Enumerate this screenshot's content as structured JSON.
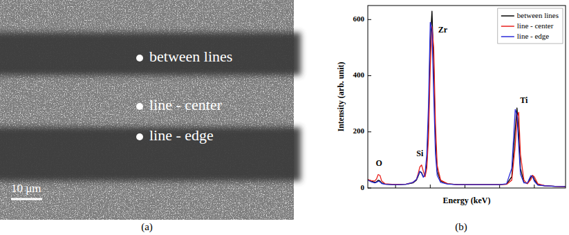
{
  "image_panel": {
    "caption": "(a)",
    "labels": [
      "between lines",
      "line - center",
      "line - edge"
    ],
    "scale_bar": "10 μm"
  },
  "chart_data": {
    "type": "line",
    "caption": "(b)",
    "x_label": "Energy (keV)",
    "y_label": "Intensity (arb. unit)",
    "x": [
      0.2,
      0.3,
      0.4,
      0.45,
      0.5,
      0.55,
      0.6,
      0.7,
      0.9,
      1.1,
      1.3,
      1.5,
      1.6,
      1.65,
      1.7,
      1.75,
      1.8,
      1.85,
      1.9,
      1.95,
      2.0,
      2.05,
      2.1,
      2.15,
      2.2,
      2.3,
      2.5,
      2.8,
      3.1,
      3.4,
      3.7,
      4.0,
      4.2,
      4.35,
      4.45,
      4.5,
      4.55,
      4.6,
      4.7,
      4.8,
      4.9,
      4.95,
      5.0,
      5.1,
      5.3,
      5.6,
      5.9
    ],
    "series": [
      {
        "name": "between lines",
        "color": "#000000",
        "values": [
          30,
          25,
          20,
          22,
          28,
          25,
          18,
          14,
          12,
          12,
          13,
          18,
          28,
          42,
          58,
          55,
          40,
          45,
          90,
          230,
          520,
          630,
          430,
          170,
          60,
          25,
          15,
          12,
          12,
          12,
          12,
          12,
          14,
          40,
          210,
          285,
          200,
          70,
          20,
          16,
          38,
          45,
          30,
          12,
          8,
          6,
          5
        ]
      },
      {
        "name": "line - center",
        "color": "#e8211d",
        "values": [
          30,
          26,
          25,
          32,
          48,
          45,
          25,
          15,
          13,
          13,
          14,
          20,
          30,
          50,
          75,
          82,
          60,
          40,
          70,
          180,
          430,
          575,
          500,
          230,
          80,
          28,
          15,
          12,
          12,
          12,
          12,
          12,
          13,
          28,
          150,
          250,
          270,
          120,
          28,
          15,
          30,
          45,
          40,
          15,
          8,
          6,
          5
        ]
      },
      {
        "name": "line - edge",
        "color": "#2b2bd9",
        "values": [
          28,
          22,
          18,
          20,
          24,
          22,
          16,
          13,
          12,
          12,
          13,
          20,
          30,
          45,
          60,
          52,
          38,
          50,
          120,
          300,
          590,
          560,
          330,
          120,
          45,
          20,
          14,
          12,
          12,
          12,
          12,
          12,
          15,
          70,
          280,
          260,
          150,
          50,
          18,
          18,
          44,
          40,
          24,
          10,
          8,
          6,
          5
        ]
      }
    ],
    "annotations": [
      {
        "text": "O",
        "x": 0.52,
        "y": 85
      },
      {
        "text": "Si",
        "x": 1.7,
        "y": 120
      },
      {
        "text": "Zr",
        "x": 2.36,
        "y": 560
      },
      {
        "text": "Ti",
        "x": 4.7,
        "y": 310
      }
    ],
    "xlim": [
      0.2,
      5.9
    ],
    "xticks": [
      1,
      2,
      3,
      4,
      5
    ],
    "ylim": [
      0,
      650
    ],
    "yticks": [
      0,
      200,
      400,
      600
    ],
    "tick_labels": "y",
    "grid": false,
    "legend": "top-right"
  }
}
